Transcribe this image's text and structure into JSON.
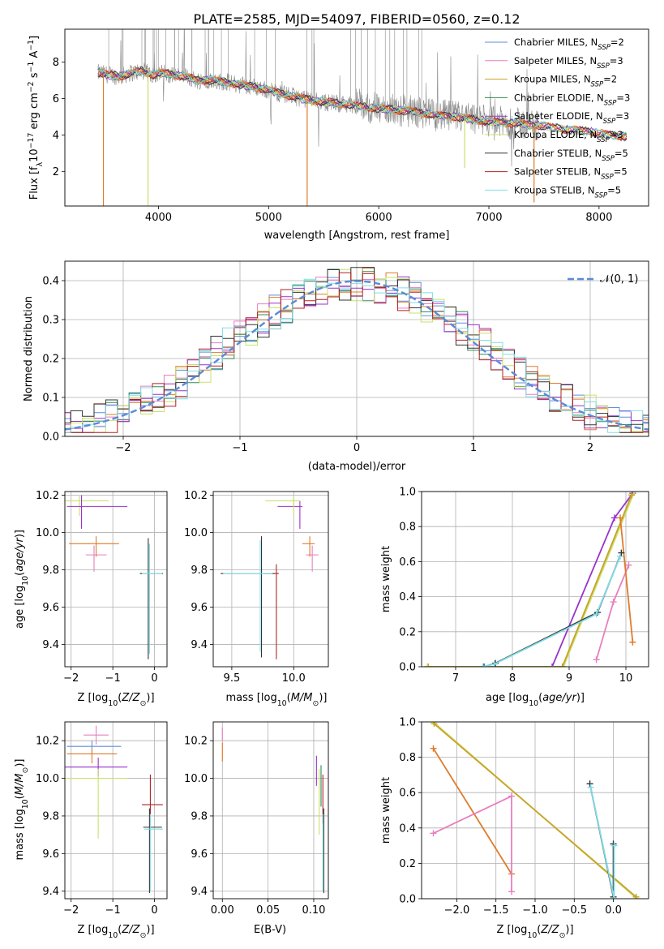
{
  "figure": {
    "title": "PLATE=2585, MJD=54097, FIBERID=0560, z=0.12"
  },
  "colors": {
    "chabrier_miles": "#5f8fd8",
    "salpeter_miles": "#e87fbf",
    "kroupa_miles": "#c9a227",
    "chabrier_elodie": "#2e8b57",
    "salpeter_elodie": "#9932cc",
    "kroupa_elodie": "#c8e06a",
    "chabrier_stelib": "#333333",
    "salpeter_stelib": "#b22222",
    "kroupa_stelib": "#7fdde8",
    "orange": "#e07b2a",
    "grey": "#8a8a8a",
    "gauss": "#5b8bd8"
  },
  "chart_data": [
    {
      "id": "spectrum",
      "type": "line",
      "title": "PLATE=2585, MJD=54097, FIBERID=0560, z=0.12",
      "xlabel": "wavelength [Angstrom, rest frame]",
      "ylabel": "Flux [f_λ 10^-17 erg cm^-2 s^-1 A^-1]",
      "xlim": [
        3150,
        8450
      ],
      "ylim": [
        0.1,
        9.8
      ],
      "xticks": [
        4000,
        5000,
        6000,
        7000,
        8000
      ],
      "yticks": [
        2,
        4,
        6,
        8
      ],
      "grid": false,
      "legend": "top-right",
      "legend_entries": [
        {
          "base": "Chabrier MILES, N",
          "sub": "SSP",
          "tail": "=2",
          "color_key": "chabrier_miles"
        },
        {
          "base": "Salpeter MILES, N",
          "sub": "SSP",
          "tail": "=3",
          "color_key": "salpeter_miles"
        },
        {
          "base": "Kroupa MILES, N",
          "sub": "SSP",
          "tail": "=2",
          "color_key": "kroupa_miles"
        },
        {
          "base": "Chabrier ELODIE, N",
          "sub": "SSP",
          "tail": "=3",
          "color_key": "chabrier_elodie"
        },
        {
          "base": "Salpeter ELODIE, N",
          "sub": "SSP",
          "tail": "=3",
          "color_key": "salpeter_elodie"
        },
        {
          "base": "Kroupa ELODIE, N",
          "sub": "SSP",
          "tail": "=3",
          "color_key": "kroupa_elodie"
        },
        {
          "base": "Chabrier STELIB, N",
          "sub": "SSP",
          "tail": "=5",
          "color_key": "chabrier_stelib"
        },
        {
          "base": "Salpeter STELIB, N",
          "sub": "SSP",
          "tail": "=5",
          "color_key": "salpeter_stelib"
        },
        {
          "base": "Kroupa STELIB, N",
          "sub": "SSP",
          "tail": "=5",
          "color_key": "kroupa_stelib"
        }
      ],
      "model_continuum": {
        "x": [
          3450,
          3550,
          3650,
          3750,
          3850,
          3950,
          4050,
          4150,
          4250,
          4350,
          4500,
          4700,
          4900,
          5100,
          5300,
          5500,
          5700,
          5900,
          6100,
          6300,
          6500,
          6700,
          6900,
          7100,
          7300,
          7500,
          7700,
          7900,
          8100,
          8250
        ],
        "y": [
          7.4,
          7.3,
          7.2,
          7.4,
          7.5,
          7.3,
          7.4,
          7.3,
          7.2,
          7.0,
          7.0,
          6.8,
          6.6,
          6.3,
          6.0,
          5.8,
          5.7,
          5.5,
          5.4,
          5.3,
          5.1,
          5.0,
          4.8,
          4.7,
          4.6,
          4.5,
          4.3,
          4.2,
          4.0,
          3.9
        ]
      },
      "data_dips": [
        {
          "x": 3500,
          "min": 0.1,
          "color_key": "orange"
        },
        {
          "x": 3905,
          "min": 0.1,
          "color_key": "kroupa_elodie"
        },
        {
          "x": 5350,
          "min": 0.1,
          "color_key": "orange"
        },
        {
          "x": 7410,
          "min": 0.3,
          "color_key": "orange"
        },
        {
          "x": 6780,
          "min": 2.2,
          "color_key": "kroupa_elodie"
        }
      ]
    },
    {
      "id": "residuals",
      "type": "line",
      "xlabel": "(data-model)/error",
      "ylabel": "Normed distribution",
      "xlim": [
        -2.5,
        2.5
      ],
      "ylim": [
        0.0,
        0.45
      ],
      "xticks": [
        -2,
        -1,
        0,
        1,
        2
      ],
      "yticks": [
        0.0,
        0.1,
        0.2,
        0.3,
        0.4
      ],
      "grid": true,
      "legend": "top-right",
      "legend_entries": [
        {
          "label": "𝒩(0, 1)",
          "color_key": "gauss"
        }
      ],
      "gaussian": {
        "mu": 0,
        "sigma": 1
      },
      "hist_bin_width": 0.1
    },
    {
      "id": "age_vs_Z",
      "type": "scatter",
      "xlabel": "Z [log10(Z/Z⊙)]",
      "ylabel": "age [log10(age/yr)]",
      "xlim": [
        -2.15,
        0.3
      ],
      "ylim": [
        9.28,
        10.22
      ],
      "xticks": [
        -2,
        -1,
        0
      ],
      "yticks": [
        9.4,
        9.6,
        9.8,
        10.0,
        10.2
      ],
      "grid": true,
      "points": [
        {
          "x": -1.8,
          "y": 10.17,
          "xerr": [
            0.55,
            0.7
          ],
          "yerr": [
            0.08,
            0.03
          ],
          "color_key": "kroupa_elodie"
        },
        {
          "x": -1.75,
          "y": 10.14,
          "xerr": [
            0.35,
            1.1
          ],
          "yerr": [
            0.12,
            0.06
          ],
          "color_key": "salpeter_elodie"
        },
        {
          "x": -1.45,
          "y": 9.88,
          "xerr": [
            0.2,
            0.3
          ],
          "yerr": [
            0.09,
            0.05
          ],
          "color_key": "salpeter_miles"
        },
        {
          "x": -1.4,
          "y": 9.94,
          "xerr": [
            0.65,
            0.55
          ],
          "yerr": [
            0.07,
            0.04
          ],
          "color_key": "orange"
        },
        {
          "x": -0.15,
          "y": 9.78,
          "xerr": [
            0.2,
            0.35
          ],
          "yerr": [
            0.46,
            0.19
          ],
          "color_key": "chabrier_stelib"
        },
        {
          "x": -0.12,
          "y": 9.78,
          "xerr": [
            0.18,
            0.3
          ],
          "yerr": [
            0.43,
            0.16
          ],
          "color_key": "kroupa_stelib"
        }
      ]
    },
    {
      "id": "age_vs_mass",
      "type": "scatter",
      "xlabel": "mass [log10(M/M⊙)]",
      "ylabel": "",
      "xlim": [
        9.35,
        10.28
      ],
      "ylim": [
        9.28,
        10.22
      ],
      "xticks": [
        9.5,
        10.0
      ],
      "yticks": [
        9.4,
        9.6,
        9.8,
        10.0,
        10.2
      ],
      "grid": true,
      "points": [
        {
          "x": 10.15,
          "y": 9.88,
          "xerr": [
            0.05,
            0.05
          ],
          "yerr": [
            0.09,
            0.05
          ],
          "color_key": "salpeter_miles"
        },
        {
          "x": 10.13,
          "y": 9.94,
          "xerr": [
            0.06,
            0.04
          ],
          "yerr": [
            0.07,
            0.04
          ],
          "color_key": "orange"
        },
        {
          "x": 10.05,
          "y": 10.14,
          "xerr": [
            0.18,
            0.02
          ],
          "yerr": [
            0.12,
            0.03
          ],
          "color_key": "salpeter_elodie"
        },
        {
          "x": 10.0,
          "y": 10.17,
          "xerr": [
            0.23,
            0.05
          ],
          "yerr": [
            0.08,
            0.03
          ],
          "color_key": "kroupa_elodie"
        },
        {
          "x": 9.86,
          "y": 9.78,
          "xerr": [
            0.1,
            0.02
          ],
          "yerr": [
            0.46,
            0.05
          ],
          "color_key": "salpeter_stelib"
        },
        {
          "x": 9.74,
          "y": 9.78,
          "xerr": [
            0.33,
            0.1
          ],
          "yerr": [
            0.45,
            0.2
          ],
          "color_key": "chabrier_stelib"
        },
        {
          "x": 9.73,
          "y": 9.78,
          "xerr": [
            0.3,
            0.1
          ],
          "yerr": [
            0.42,
            0.18
          ],
          "color_key": "kroupa_stelib"
        }
      ]
    },
    {
      "id": "mass_weight_vs_age",
      "type": "line",
      "xlabel": "age [log10(age/yr)]",
      "ylabel": "mass weight",
      "xlim": [
        6.4,
        10.4
      ],
      "ylim": [
        0.0,
        1.0
      ],
      "xticks": [
        7,
        8,
        9,
        10
      ],
      "yticks": [
        0.0,
        0.2,
        0.4,
        0.6,
        0.8,
        1.0
      ],
      "grid": true,
      "series": [
        {
          "color_key": "salpeter_elodie",
          "x": [
            8.7,
            9.8,
            10.12
          ],
          "y": [
            0.0,
            0.85,
            0.99
          ]
        },
        {
          "color_key": "kroupa_elodie",
          "x": [
            6.5,
            8.9,
            10.15
          ],
          "y": [
            0.0,
            0.0,
            1.0
          ]
        },
        {
          "color_key": "kroupa_miles",
          "x": [
            6.52,
            8.88,
            10.1
          ],
          "y": [
            0.0,
            0.0,
            0.98
          ]
        },
        {
          "color_key": "salpeter_miles",
          "x": [
            9.48,
            9.78,
            10.05
          ],
          "y": [
            0.04,
            0.37,
            0.58
          ]
        },
        {
          "color_key": "orange",
          "x": [
            9.9,
            10.12
          ],
          "y": [
            0.85,
            0.14
          ]
        },
        {
          "color_key": "chabrier_stelib",
          "x": [
            7.5,
            7.7,
            9.5,
            9.92
          ],
          "y": [
            0.0,
            0.02,
            0.31,
            0.65
          ]
        },
        {
          "color_key": "kroupa_stelib",
          "x": [
            7.48,
            7.68,
            9.48,
            9.9
          ],
          "y": [
            0.0,
            0.015,
            0.3,
            0.63
          ]
        }
      ]
    },
    {
      "id": "mass_vs_Z",
      "type": "scatter",
      "xlabel": "Z [log10(Z/Z⊙)]",
      "ylabel": "mass [log10(M/M⊙)]",
      "xlim": [
        -2.15,
        0.3
      ],
      "ylim": [
        9.36,
        10.3
      ],
      "xticks": [
        -2,
        -1,
        0
      ],
      "yticks": [
        9.4,
        9.6,
        9.8,
        10.0,
        10.2
      ],
      "grid": true,
      "points": [
        {
          "x": -1.4,
          "y": 10.23,
          "xerr": [
            0.3,
            0.3
          ],
          "yerr": [
            0.05,
            0.05
          ],
          "color_key": "salpeter_miles"
        },
        {
          "x": -1.5,
          "y": 10.17,
          "xerr": [
            0.6,
            0.7
          ],
          "yerr": [
            0.04,
            0.03
          ],
          "color_key": "chabrier_miles"
        },
        {
          "x": -1.5,
          "y": 10.13,
          "xerr": [
            0.6,
            0.6
          ],
          "yerr": [
            0.05,
            0.03
          ],
          "color_key": "orange"
        },
        {
          "x": -1.35,
          "y": 10.06,
          "xerr": [
            0.8,
            0.7
          ],
          "yerr": [
            0.05,
            0.05
          ],
          "color_key": "salpeter_elodie"
        },
        {
          "x": -1.35,
          "y": 10.0,
          "xerr": [
            0.8,
            0.7
          ],
          "yerr": [
            0.32,
            0.05
          ],
          "color_key": "kroupa_elodie"
        },
        {
          "x": -0.1,
          "y": 9.86,
          "xerr": [
            0.2,
            0.3
          ],
          "yerr": [
            0.1,
            0.16
          ],
          "color_key": "salpeter_stelib"
        },
        {
          "x": -0.12,
          "y": 9.74,
          "xerr": [
            0.15,
            0.3
          ],
          "yerr": [
            0.35,
            0.1
          ],
          "color_key": "chabrier_stelib"
        },
        {
          "x": -0.1,
          "y": 9.73,
          "xerr": [
            0.15,
            0.3
          ],
          "yerr": [
            0.33,
            0.08
          ],
          "color_key": "kroupa_stelib"
        }
      ]
    },
    {
      "id": "mass_vs_ebv",
      "type": "scatter",
      "xlabel": "E(B-V)",
      "ylabel": "",
      "xlim": [
        -0.01,
        0.116
      ],
      "ylim": [
        9.36,
        10.3
      ],
      "xticks": [
        0.0,
        0.05,
        0.1
      ],
      "xticklabels": [
        "0.00",
        "0.05",
        "0.10"
      ],
      "yticks": [
        9.4,
        9.6,
        9.8,
        10.0,
        10.2
      ],
      "grid": true,
      "points": [
        {
          "x": 0.0,
          "y": 10.23,
          "xerr": [
            0,
            0
          ],
          "yerr": [
            0.03,
            0.04
          ],
          "color_key": "salpeter_miles"
        },
        {
          "x": 0.0,
          "y": 10.13,
          "xerr": [
            0,
            0
          ],
          "yerr": [
            0.04,
            0.06
          ],
          "color_key": "orange"
        },
        {
          "x": 0.103,
          "y": 10.06,
          "xerr": [
            0,
            0
          ],
          "yerr": [
            0.1,
            0.06
          ],
          "color_key": "salpeter_elodie"
        },
        {
          "x": 0.106,
          "y": 10.0,
          "xerr": [
            0,
            0
          ],
          "yerr": [
            0.3,
            0.05
          ],
          "color_key": "kroupa_elodie"
        },
        {
          "x": 0.108,
          "y": 9.95,
          "xerr": [
            0,
            0
          ],
          "yerr": [
            0.1,
            0.12
          ],
          "color_key": "chabrier_elodie"
        },
        {
          "x": 0.11,
          "y": 9.86,
          "xerr": [
            0,
            0
          ],
          "yerr": [
            0.1,
            0.16
          ],
          "color_key": "salpeter_stelib"
        },
        {
          "x": 0.111,
          "y": 9.74,
          "xerr": [
            0,
            0
          ],
          "yerr": [
            0.35,
            0.1
          ],
          "color_key": "chabrier_stelib"
        },
        {
          "x": 0.11,
          "y": 9.73,
          "xerr": [
            0,
            0
          ],
          "yerr": [
            0.33,
            0.08
          ],
          "color_key": "kroupa_stelib"
        }
      ]
    },
    {
      "id": "mass_weight_vs_Z",
      "type": "line",
      "xlabel": "Z [log10(Z/Z⊙)]",
      "ylabel": "mass weight",
      "xlim": [
        -2.45,
        0.45
      ],
      "ylim": [
        0.0,
        1.0
      ],
      "xticks": [
        -2.0,
        -1.5,
        -1.0,
        -0.5,
        0.0
      ],
      "xticklabels": [
        "−2.0",
        "−1.5",
        "−1.0",
        "−0.5",
        "0.0"
      ],
      "yticks": [
        0.0,
        0.2,
        0.4,
        0.6,
        0.8,
        1.0
      ],
      "grid": true,
      "series": [
        {
          "color_key": "kroupa_elodie",
          "x": [
            -2.3,
            0.3
          ],
          "y": [
            1.0,
            0.0
          ]
        },
        {
          "color_key": "kroupa_miles",
          "x": [
            -2.29,
            0.29
          ],
          "y": [
            0.99,
            0.01
          ]
        },
        {
          "color_key": "orange",
          "x": [
            -2.3,
            -1.3
          ],
          "y": [
            0.85,
            0.14
          ]
        },
        {
          "color_key": "salpeter_miles",
          "x": [
            -2.3,
            -1.3,
            -1.3
          ],
          "y": [
            0.37,
            0.58,
            0.04
          ]
        },
        {
          "color_key": "chabrier_stelib",
          "x": [
            -0.3,
            0.0,
            0.0
          ],
          "y": [
            0.65,
            0.01,
            0.31
          ]
        },
        {
          "color_key": "kroupa_stelib",
          "x": [
            -0.29,
            0.01,
            0.01
          ],
          "y": [
            0.63,
            0.0,
            0.3
          ]
        }
      ]
    }
  ]
}
